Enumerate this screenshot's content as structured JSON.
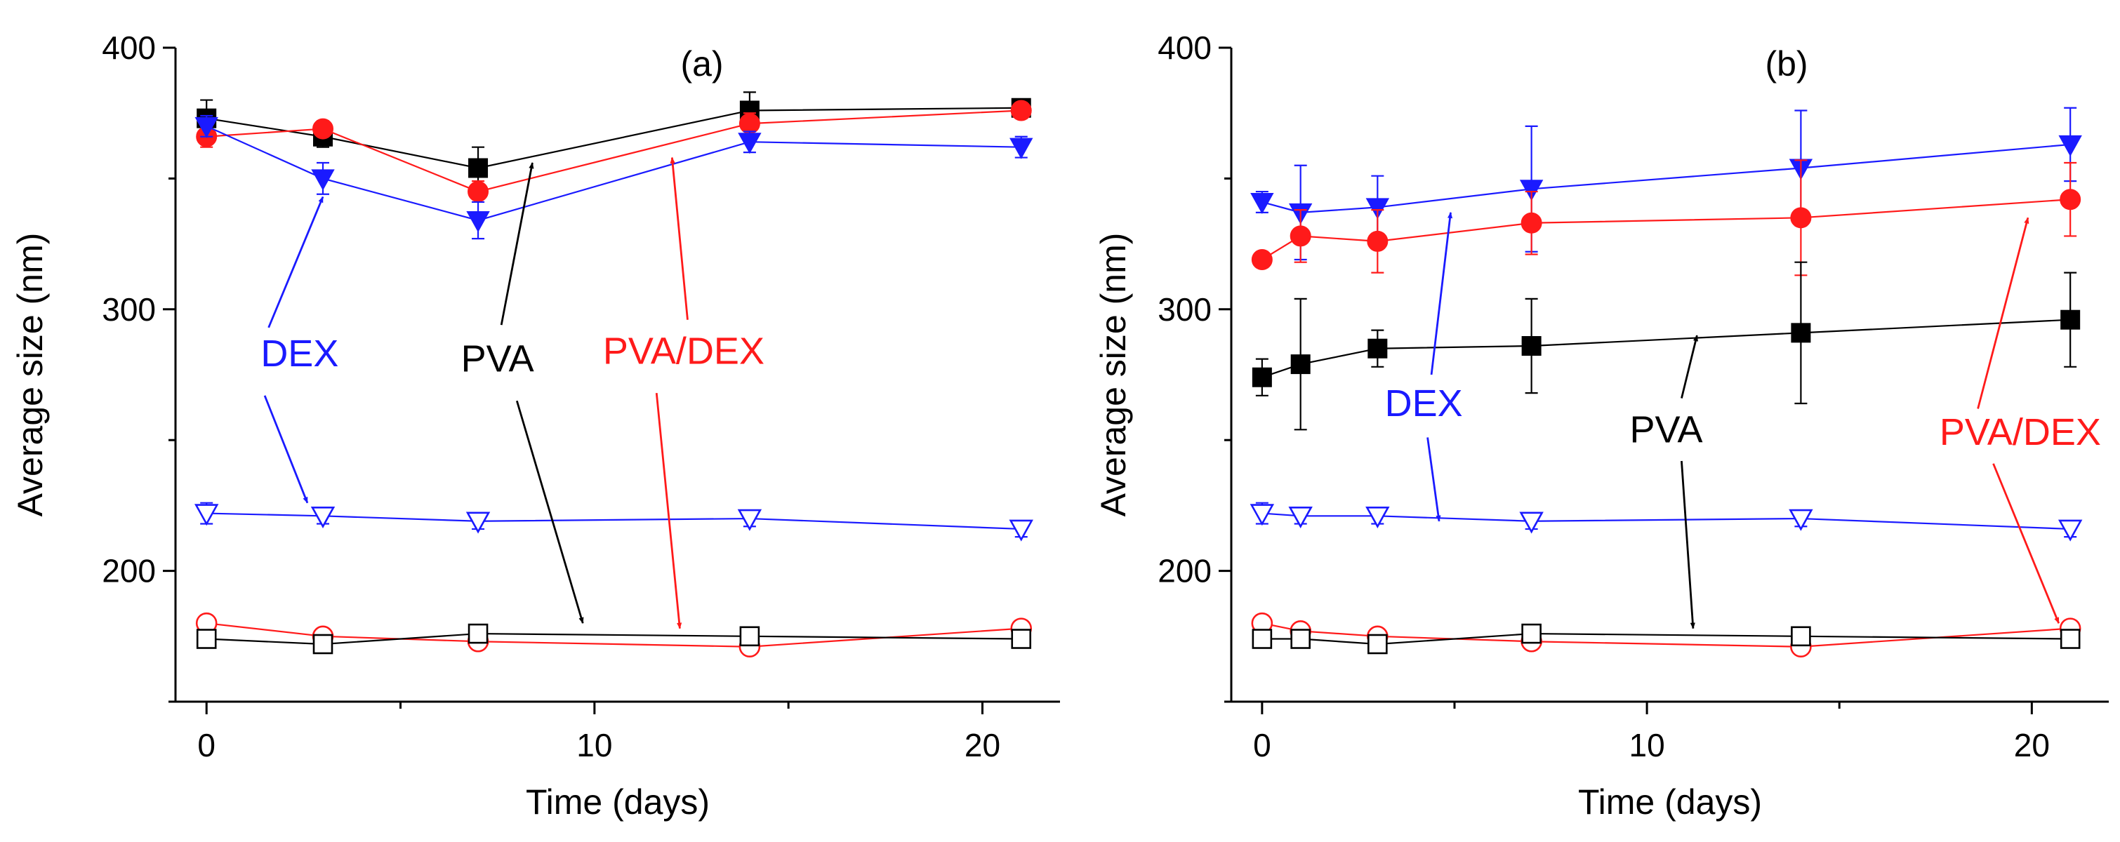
{
  "colors": {
    "PVA": "#000000",
    "DEX": "#1a1aff",
    "PVA/DEX": "#ff1a1a"
  },
  "chart_data": [
    {
      "type": "line",
      "panel_label": "(a)",
      "xlabel": "Time (days)",
      "ylabel": "Average size (nm)",
      "xlim": [
        -0.8,
        22
      ],
      "ylim": [
        150,
        400
      ],
      "xticks": [
        0,
        10,
        20
      ],
      "yticks": [
        200,
        300,
        400
      ],
      "x": [
        0,
        3,
        7,
        14,
        21
      ],
      "series": [
        {
          "name": "PVA",
          "group": "filled",
          "marker": "square",
          "color_key": "PVA",
          "values": [
            373,
            366,
            354,
            376,
            377
          ],
          "errors": [
            7,
            4,
            8,
            7,
            3
          ]
        },
        {
          "name": "PVA/DEX",
          "group": "filled",
          "marker": "circle",
          "color_key": "PVA/DEX",
          "values": [
            366,
            369,
            345,
            371,
            376
          ],
          "errors": [
            4,
            3,
            4,
            4,
            3
          ]
        },
        {
          "name": "DEX",
          "group": "filled",
          "marker": "triangle-down",
          "color_key": "DEX",
          "values": [
            370,
            350,
            334,
            364,
            362
          ],
          "errors": [
            4,
            6,
            7,
            4,
            4
          ]
        },
        {
          "name": "DEX",
          "group": "open",
          "marker": "triangle-down",
          "color_key": "DEX",
          "values": [
            222,
            221,
            219,
            220,
            216
          ],
          "errors": [
            4,
            3,
            3,
            3,
            3
          ]
        },
        {
          "name": "PVA/DEX",
          "group": "open",
          "marker": "circle",
          "color_key": "PVA/DEX",
          "values": [
            180,
            175,
            173,
            171,
            178
          ],
          "errors": [
            3,
            3,
            3,
            3,
            3
          ]
        },
        {
          "name": "PVA",
          "group": "open",
          "marker": "square",
          "color_key": "PVA",
          "values": [
            174,
            172,
            176,
            175,
            174
          ],
          "errors": [
            3,
            3,
            3,
            3,
            3
          ]
        }
      ],
      "annotations": [
        {
          "text": "DEX",
          "color_key": "DEX",
          "x": 2.4,
          "y": 283,
          "arrows": [
            {
              "from": [
                1.6,
                293
              ],
              "to": [
                3.0,
                343
              ]
            },
            {
              "from": [
                1.5,
                267
              ],
              "to": [
                2.6,
                226
              ]
            }
          ]
        },
        {
          "text": "PVA",
          "color_key": "PVA",
          "x": 7.5,
          "y": 281,
          "arrows": [
            {
              "from": [
                7.6,
                294
              ],
              "to": [
                8.4,
                356
              ]
            },
            {
              "from": [
                8.0,
                265
              ],
              "to": [
                9.7,
                180
              ]
            }
          ]
        },
        {
          "text": "PVA/DEX",
          "color_key": "PVA/DEX",
          "x": 12.3,
          "y": 284,
          "arrows": [
            {
              "from": [
                12.4,
                296
              ],
              "to": [
                12.0,
                358
              ]
            },
            {
              "from": [
                11.6,
                268
              ],
              "to": [
                12.2,
                178
              ]
            }
          ]
        }
      ]
    },
    {
      "type": "line",
      "panel_label": "(b)",
      "xlabel": "Time (days)",
      "ylabel": "Average size (nm)",
      "xlim": [
        -0.8,
        22
      ],
      "ylim": [
        150,
        400
      ],
      "xticks": [
        0,
        10,
        20
      ],
      "yticks": [
        200,
        300,
        400
      ],
      "x": [
        0,
        1,
        3,
        7,
        14,
        21
      ],
      "series": [
        {
          "name": "DEX",
          "group": "filled",
          "marker": "triangle-down",
          "color_key": "DEX",
          "values": [
            341,
            337,
            339,
            346,
            354,
            363
          ],
          "errors": [
            4,
            18,
            12,
            24,
            22,
            14
          ]
        },
        {
          "name": "PVA/DEX",
          "group": "filled",
          "marker": "circle",
          "color_key": "PVA/DEX",
          "values": [
            319,
            328,
            326,
            333,
            335,
            342
          ],
          "errors": [
            3,
            10,
            12,
            12,
            22,
            14
          ]
        },
        {
          "name": "PVA",
          "group": "filled",
          "marker": "square",
          "color_key": "PVA",
          "values": [
            274,
            279,
            285,
            286,
            291,
            296
          ],
          "errors": [
            7,
            25,
            7,
            18,
            27,
            18
          ]
        },
        {
          "name": "DEX",
          "group": "open",
          "marker": "triangle-down",
          "color_key": "DEX",
          "values": [
            222,
            221,
            221,
            219,
            220,
            216
          ],
          "errors": [
            4,
            3,
            3,
            3,
            3,
            3
          ]
        },
        {
          "name": "PVA/DEX",
          "group": "open",
          "marker": "circle",
          "color_key": "PVA/DEX",
          "values": [
            180,
            177,
            175,
            173,
            171,
            178
          ],
          "errors": [
            3,
            3,
            3,
            3,
            3,
            3
          ]
        },
        {
          "name": "PVA",
          "group": "open",
          "marker": "square",
          "color_key": "PVA",
          "values": [
            174,
            174,
            172,
            176,
            175,
            174
          ],
          "errors": [
            3,
            3,
            3,
            3,
            3,
            3
          ]
        }
      ],
      "annotations": [
        {
          "text": "DEX",
          "color_key": "DEX",
          "x": 4.2,
          "y": 264,
          "arrows": [
            {
              "from": [
                4.4,
                275
              ],
              "to": [
                4.9,
                337
              ]
            },
            {
              "from": [
                4.3,
                251
              ],
              "to": [
                4.6,
                219
              ]
            }
          ]
        },
        {
          "text": "PVA",
          "color_key": "PVA",
          "x": 10.5,
          "y": 254,
          "arrows": [
            {
              "from": [
                10.9,
                266
              ],
              "to": [
                11.3,
                290
              ]
            },
            {
              "from": [
                10.9,
                242
              ],
              "to": [
                11.2,
                178
              ]
            }
          ]
        },
        {
          "text": "PVA/DEX",
          "color_key": "PVA/DEX",
          "x": 19.7,
          "y": 253,
          "arrows": [
            {
              "from": [
                18.6,
                262
              ],
              "to": [
                19.9,
                335
              ]
            },
            {
              "from": [
                19.0,
                241
              ],
              "to": [
                20.7,
                180
              ]
            }
          ]
        }
      ]
    }
  ]
}
